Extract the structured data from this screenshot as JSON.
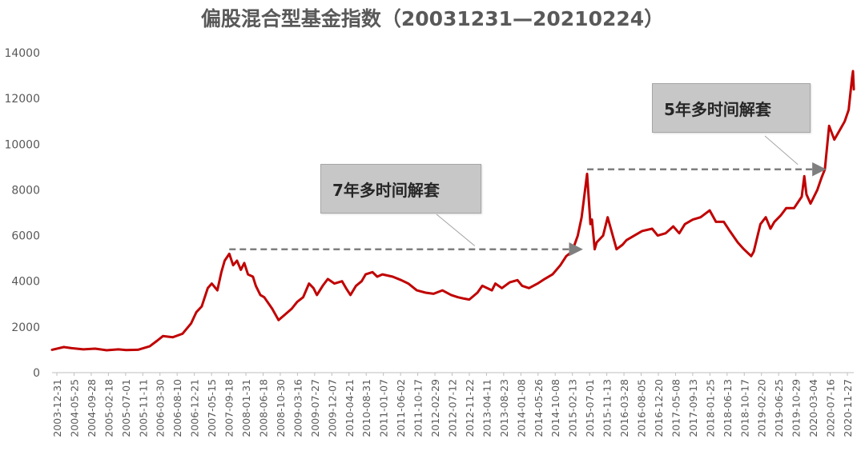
{
  "chart_data": {
    "type": "line",
    "title": "偏股混合型基金指数（20031231—20210224）",
    "xlabel": "",
    "ylabel": "",
    "ylim": [
      0,
      14000
    ],
    "yticks": [
      0,
      2000,
      4000,
      6000,
      8000,
      10000,
      12000,
      14000
    ],
    "grid": false,
    "legend": "none",
    "line_color": "#c00000",
    "annotation_color": "#7f7f7f",
    "x_tick_labels": [
      "2003-12-31",
      "2004-05-25",
      "2004-09-28",
      "2005-02-18",
      "2005-07-01",
      "2005-11-11",
      "2006-03-30",
      "2006-08-10",
      "2006-12-21",
      "2007-05-15",
      "2007-09-18",
      "2008-01-31",
      "2008-06-18",
      "2008-10-30",
      "2009-03-16",
      "2009-07-27",
      "2009-12-07",
      "2010-04-21",
      "2010-08-31",
      "2011-01-07",
      "2011-06-02",
      "2011-10-17",
      "2012-02-29",
      "2012-07-12",
      "2012-11-22",
      "2013-04-11",
      "2013-08-23",
      "2014-01-08",
      "2014-05-26",
      "2014-10-08",
      "2015-02-13",
      "2015-07-01",
      "2015-11-13",
      "2016-03-28",
      "2016-08-05",
      "2016-12-20",
      "2017-05-08",
      "2017-09-13",
      "2018-01-25",
      "2018-06-13",
      "2018-10-17",
      "2019-02-20",
      "2019-06-25",
      "2019-10-29",
      "2020-03-04",
      "2020-07-16",
      "2020-11-27"
    ],
    "series": [
      {
        "x": [
          "2003-12-31",
          "2004-04-01",
          "2004-06-01",
          "2004-09-01",
          "2004-12-01",
          "2005-03-01",
          "2005-06-01",
          "2005-08-01",
          "2005-11-01",
          "2006-02-01",
          "2006-04-01",
          "2006-05-15",
          "2006-08-01",
          "2006-10-15",
          "2006-12-21",
          "2007-02-01",
          "2007-03-15",
          "2007-05-01",
          "2007-06-01",
          "2007-07-15",
          "2007-08-15",
          "2007-09-10",
          "2007-10-16",
          "2007-11-15",
          "2007-12-15",
          "2008-01-14",
          "2008-02-10",
          "2008-03-10",
          "2008-04-18",
          "2008-05-10",
          "2008-06-15",
          "2008-07-15",
          "2008-09-15",
          "2008-11-04",
          "2008-12-15",
          "2009-02-15",
          "2009-03-30",
          "2009-05-15",
          "2009-06-30",
          "2009-08-04",
          "2009-08-31",
          "2009-10-15",
          "2009-11-24",
          "2010-01-15",
          "2010-03-15",
          "2010-04-15",
          "2010-05-20",
          "2010-07-02",
          "2010-08-15",
          "2010-09-15",
          "2010-11-08",
          "2010-12-15",
          "2011-01-25",
          "2011-04-15",
          "2011-06-20",
          "2011-08-15",
          "2011-10-20",
          "2011-12-28",
          "2012-02-28",
          "2012-05-07",
          "2012-07-15",
          "2012-09-05",
          "2012-10-15",
          "2012-12-03",
          "2013-02-05",
          "2013-03-15",
          "2013-05-29",
          "2013-06-25",
          "2013-08-15",
          "2013-10-15",
          "2013-12-15",
          "2014-01-20",
          "2014-03-15",
          "2014-05-21",
          "2014-07-15",
          "2014-09-15",
          "2014-11-15",
          "2014-12-31",
          "2015-02-15",
          "2015-03-31",
          "2015-04-30",
          "2015-06-12",
          "2015-07-08",
          "2015-07-20",
          "2015-08-10",
          "2015-08-26",
          "2015-10-15",
          "2015-11-20",
          "2016-01-28",
          "2016-03-15",
          "2016-04-15",
          "2016-06-15",
          "2016-08-15",
          "2016-11-01",
          "2016-12-15",
          "2017-02-15",
          "2017-04-15",
          "2017-06-01",
          "2017-07-15",
          "2017-09-15",
          "2017-11-15",
          "2018-01-25",
          "2018-03-15",
          "2018-05-15",
          "2018-07-01",
          "2018-09-01",
          "2018-10-19",
          "2018-12-15",
          "2019-01-04",
          "2019-02-25",
          "2019-04-08",
          "2019-05-15",
          "2019-06-15",
          "2019-08-06",
          "2019-09-15",
          "2019-11-15",
          "2020-01-14",
          "2020-02-03",
          "2020-02-20",
          "2020-03-23",
          "2020-05-15",
          "2020-06-15",
          "2020-07-13",
          "2020-08-15",
          "2020-09-25",
          "2020-11-15",
          "2020-12-15",
          "2021-01-15",
          "2021-02-10",
          "2021-02-18",
          "2021-02-24"
        ],
        "values": [
          1000,
          1120,
          1070,
          1020,
          1050,
          980,
          1020,
          990,
          1000,
          1150,
          1400,
          1600,
          1550,
          1700,
          2150,
          2650,
          2900,
          3700,
          3900,
          3600,
          4400,
          4900,
          5200,
          4700,
          4900,
          4500,
          4800,
          4300,
          4200,
          3800,
          3400,
          3300,
          2800,
          2300,
          2500,
          2800,
          3100,
          3300,
          3900,
          3700,
          3400,
          3800,
          4100,
          3900,
          4000,
          3700,
          3400,
          3800,
          4000,
          4300,
          4400,
          4200,
          4300,
          4200,
          4050,
          3900,
          3600,
          3500,
          3450,
          3600,
          3400,
          3300,
          3250,
          3200,
          3500,
          3800,
          3600,
          3900,
          3700,
          3950,
          4050,
          3800,
          3700,
          3900,
          4100,
          4300,
          4700,
          5100,
          5300,
          6000,
          6800,
          8700,
          6500,
          6700,
          5400,
          5700,
          6000,
          6800,
          5400,
          5600,
          5800,
          6000,
          6200,
          6300,
          6000,
          6100,
          6400,
          6100,
          6500,
          6700,
          6800,
          7100,
          6600,
          6600,
          6200,
          5700,
          5400,
          5100,
          5300,
          6500,
          6800,
          6300,
          6600,
          6900,
          7200,
          7200,
          7700,
          8600,
          7800,
          7400,
          8000,
          8500,
          8900,
          10800,
          10200,
          10700,
          11000,
          11500,
          12900,
          13200,
          12400
        ]
      }
    ],
    "annotations": [
      {
        "text": "7年多时间解套",
        "from": "2007-10-16",
        "to": "2015-04-30",
        "level": 5400,
        "pointer": "2013-01-15",
        "pointer_level": 5550
      },
      {
        "text": "5年多时间解套",
        "from": "2015-06-12",
        "to": "2020-07-13",
        "level": 8900,
        "pointer": "2019-12-15",
        "pointer_level": 8900
      }
    ]
  }
}
